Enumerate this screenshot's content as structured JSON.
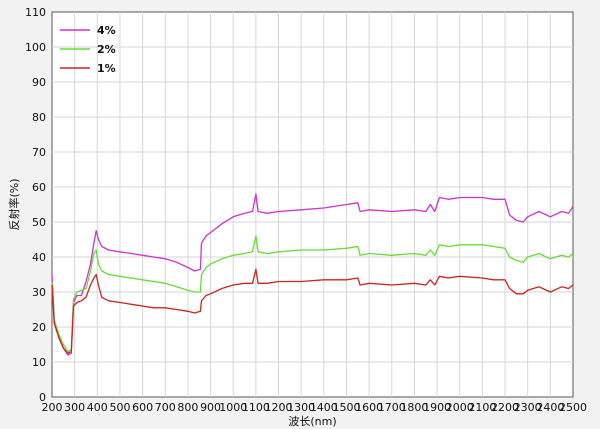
{
  "chart_data": {
    "type": "line",
    "xlabel": "波长(nm)",
    "ylabel": "反射率(%)",
    "xlim": [
      200,
      2500
    ],
    "ylim": [
      0,
      110
    ],
    "xticks": [
      200,
      300,
      400,
      500,
      600,
      700,
      800,
      900,
      1000,
      1100,
      1200,
      1300,
      1400,
      1500,
      1600,
      1700,
      1800,
      1900,
      2000,
      2100,
      2200,
      2300,
      2400,
      2500
    ],
    "xtick_labels": [
      "200",
      "300",
      "400",
      "500",
      "600",
      "700",
      "800",
      "900",
      "1000",
      "1100",
      "1200",
      "1300",
      "1400",
      "1500",
      "1600",
      "1700",
      "1800",
      "1900",
      "2000",
      "2100",
      "2200",
      "2300",
      "2400",
      "2500"
    ],
    "yticks": [
      0,
      10,
      20,
      30,
      40,
      50,
      60,
      70,
      80,
      90,
      100,
      110
    ],
    "ytick_labels": [
      "0",
      "10",
      "20",
      "30",
      "40",
      "50",
      "60",
      "70",
      "80",
      "90",
      "100",
      "110"
    ],
    "grid": true,
    "legend_position": "top-left",
    "series": [
      {
        "name": "4%",
        "color": "#cc33cc",
        "points": [
          [
            200,
            35
          ],
          [
            210,
            22
          ],
          [
            230,
            17
          ],
          [
            250,
            14
          ],
          [
            270,
            12
          ],
          [
            285,
            12.5
          ],
          [
            295,
            27
          ],
          [
            310,
            29
          ],
          [
            330,
            29
          ],
          [
            350,
            33
          ],
          [
            370,
            38
          ],
          [
            385,
            44
          ],
          [
            395,
            47.5
          ],
          [
            405,
            45
          ],
          [
            420,
            43
          ],
          [
            450,
            42
          ],
          [
            500,
            41.5
          ],
          [
            550,
            41
          ],
          [
            600,
            40.5
          ],
          [
            650,
            40
          ],
          [
            700,
            39.5
          ],
          [
            750,
            38.5
          ],
          [
            800,
            37
          ],
          [
            830,
            36
          ],
          [
            855,
            36.5
          ],
          [
            860,
            44
          ],
          [
            880,
            46
          ],
          [
            900,
            47
          ],
          [
            950,
            49.5
          ],
          [
            1000,
            51.5
          ],
          [
            1050,
            52.5
          ],
          [
            1085,
            53
          ],
          [
            1100,
            58
          ],
          [
            1110,
            53
          ],
          [
            1150,
            52.5
          ],
          [
            1200,
            53
          ],
          [
            1300,
            53.5
          ],
          [
            1400,
            54
          ],
          [
            1500,
            55
          ],
          [
            1550,
            55.5
          ],
          [
            1560,
            53
          ],
          [
            1600,
            53.5
          ],
          [
            1700,
            53
          ],
          [
            1800,
            53.5
          ],
          [
            1850,
            53
          ],
          [
            1870,
            55
          ],
          [
            1890,
            53
          ],
          [
            1910,
            57
          ],
          [
            1950,
            56.5
          ],
          [
            2000,
            57
          ],
          [
            2100,
            57
          ],
          [
            2150,
            56.5
          ],
          [
            2200,
            56.5
          ],
          [
            2220,
            52
          ],
          [
            2250,
            50.5
          ],
          [
            2280,
            50
          ],
          [
            2300,
            51.5
          ],
          [
            2350,
            53
          ],
          [
            2400,
            51.5
          ],
          [
            2450,
            53
          ],
          [
            2480,
            52.5
          ],
          [
            2500,
            54.5
          ]
        ]
      },
      {
        "name": "2%",
        "color": "#66dd33",
        "points": [
          [
            200,
            33
          ],
          [
            210,
            22
          ],
          [
            230,
            18
          ],
          [
            250,
            15
          ],
          [
            270,
            13
          ],
          [
            285,
            13.5
          ],
          [
            295,
            28
          ],
          [
            310,
            30
          ],
          [
            330,
            30.5
          ],
          [
            350,
            31
          ],
          [
            370,
            36
          ],
          [
            385,
            41
          ],
          [
            395,
            42
          ],
          [
            405,
            38
          ],
          [
            420,
            36
          ],
          [
            450,
            35
          ],
          [
            500,
            34.5
          ],
          [
            550,
            34
          ],
          [
            600,
            33.5
          ],
          [
            650,
            33
          ],
          [
            700,
            32.5
          ],
          [
            750,
            31.5
          ],
          [
            800,
            30.5
          ],
          [
            830,
            30
          ],
          [
            855,
            30
          ],
          [
            860,
            35
          ],
          [
            880,
            37
          ],
          [
            900,
            38
          ],
          [
            950,
            39.5
          ],
          [
            1000,
            40.5
          ],
          [
            1050,
            41
          ],
          [
            1085,
            41.5
          ],
          [
            1100,
            46
          ],
          [
            1110,
            41.5
          ],
          [
            1150,
            41
          ],
          [
            1200,
            41.5
          ],
          [
            1300,
            42
          ],
          [
            1400,
            42
          ],
          [
            1500,
            42.5
          ],
          [
            1550,
            43
          ],
          [
            1560,
            40.5
          ],
          [
            1600,
            41
          ],
          [
            1700,
            40.5
          ],
          [
            1800,
            41
          ],
          [
            1850,
            40.5
          ],
          [
            1870,
            42
          ],
          [
            1890,
            40.5
          ],
          [
            1910,
            43.5
          ],
          [
            1950,
            43
          ],
          [
            2000,
            43.5
          ],
          [
            2100,
            43.5
          ],
          [
            2150,
            43
          ],
          [
            2200,
            42.5
          ],
          [
            2220,
            40
          ],
          [
            2250,
            39
          ],
          [
            2280,
            38.5
          ],
          [
            2300,
            40
          ],
          [
            2350,
            41
          ],
          [
            2400,
            39.5
          ],
          [
            2450,
            40.5
          ],
          [
            2480,
            40
          ],
          [
            2500,
            41
          ]
        ]
      },
      {
        "name": "1%",
        "color": "#cc2222",
        "points": [
          [
            200,
            32
          ],
          [
            210,
            21
          ],
          [
            230,
            17
          ],
          [
            250,
            14
          ],
          [
            270,
            12.5
          ],
          [
            285,
            13
          ],
          [
            295,
            26
          ],
          [
            310,
            27
          ],
          [
            330,
            27.5
          ],
          [
            350,
            28.5
          ],
          [
            370,
            32
          ],
          [
            385,
            34
          ],
          [
            395,
            35
          ],
          [
            405,
            32
          ],
          [
            420,
            28.5
          ],
          [
            450,
            27.5
          ],
          [
            500,
            27
          ],
          [
            550,
            26.5
          ],
          [
            600,
            26
          ],
          [
            650,
            25.5
          ],
          [
            700,
            25.5
          ],
          [
            750,
            25
          ],
          [
            800,
            24.5
          ],
          [
            830,
            24
          ],
          [
            855,
            24.5
          ],
          [
            860,
            27.5
          ],
          [
            880,
            29
          ],
          [
            900,
            29.5
          ],
          [
            950,
            31
          ],
          [
            1000,
            32
          ],
          [
            1050,
            32.5
          ],
          [
            1085,
            32.5
          ],
          [
            1100,
            36.5
          ],
          [
            1110,
            32.5
          ],
          [
            1150,
            32.5
          ],
          [
            1200,
            33
          ],
          [
            1300,
            33
          ],
          [
            1400,
            33.5
          ],
          [
            1500,
            33.5
          ],
          [
            1550,
            34
          ],
          [
            1560,
            32
          ],
          [
            1600,
            32.5
          ],
          [
            1700,
            32
          ],
          [
            1800,
            32.5
          ],
          [
            1850,
            32
          ],
          [
            1870,
            33.5
          ],
          [
            1890,
            32
          ],
          [
            1910,
            34.5
          ],
          [
            1950,
            34
          ],
          [
            2000,
            34.5
          ],
          [
            2100,
            34
          ],
          [
            2150,
            33.5
          ],
          [
            2200,
            33.5
          ],
          [
            2220,
            31
          ],
          [
            2250,
            29.5
          ],
          [
            2280,
            29.5
          ],
          [
            2300,
            30.5
          ],
          [
            2350,
            31.5
          ],
          [
            2400,
            30
          ],
          [
            2450,
            31.5
          ],
          [
            2480,
            31
          ],
          [
            2500,
            32
          ]
        ]
      }
    ]
  }
}
